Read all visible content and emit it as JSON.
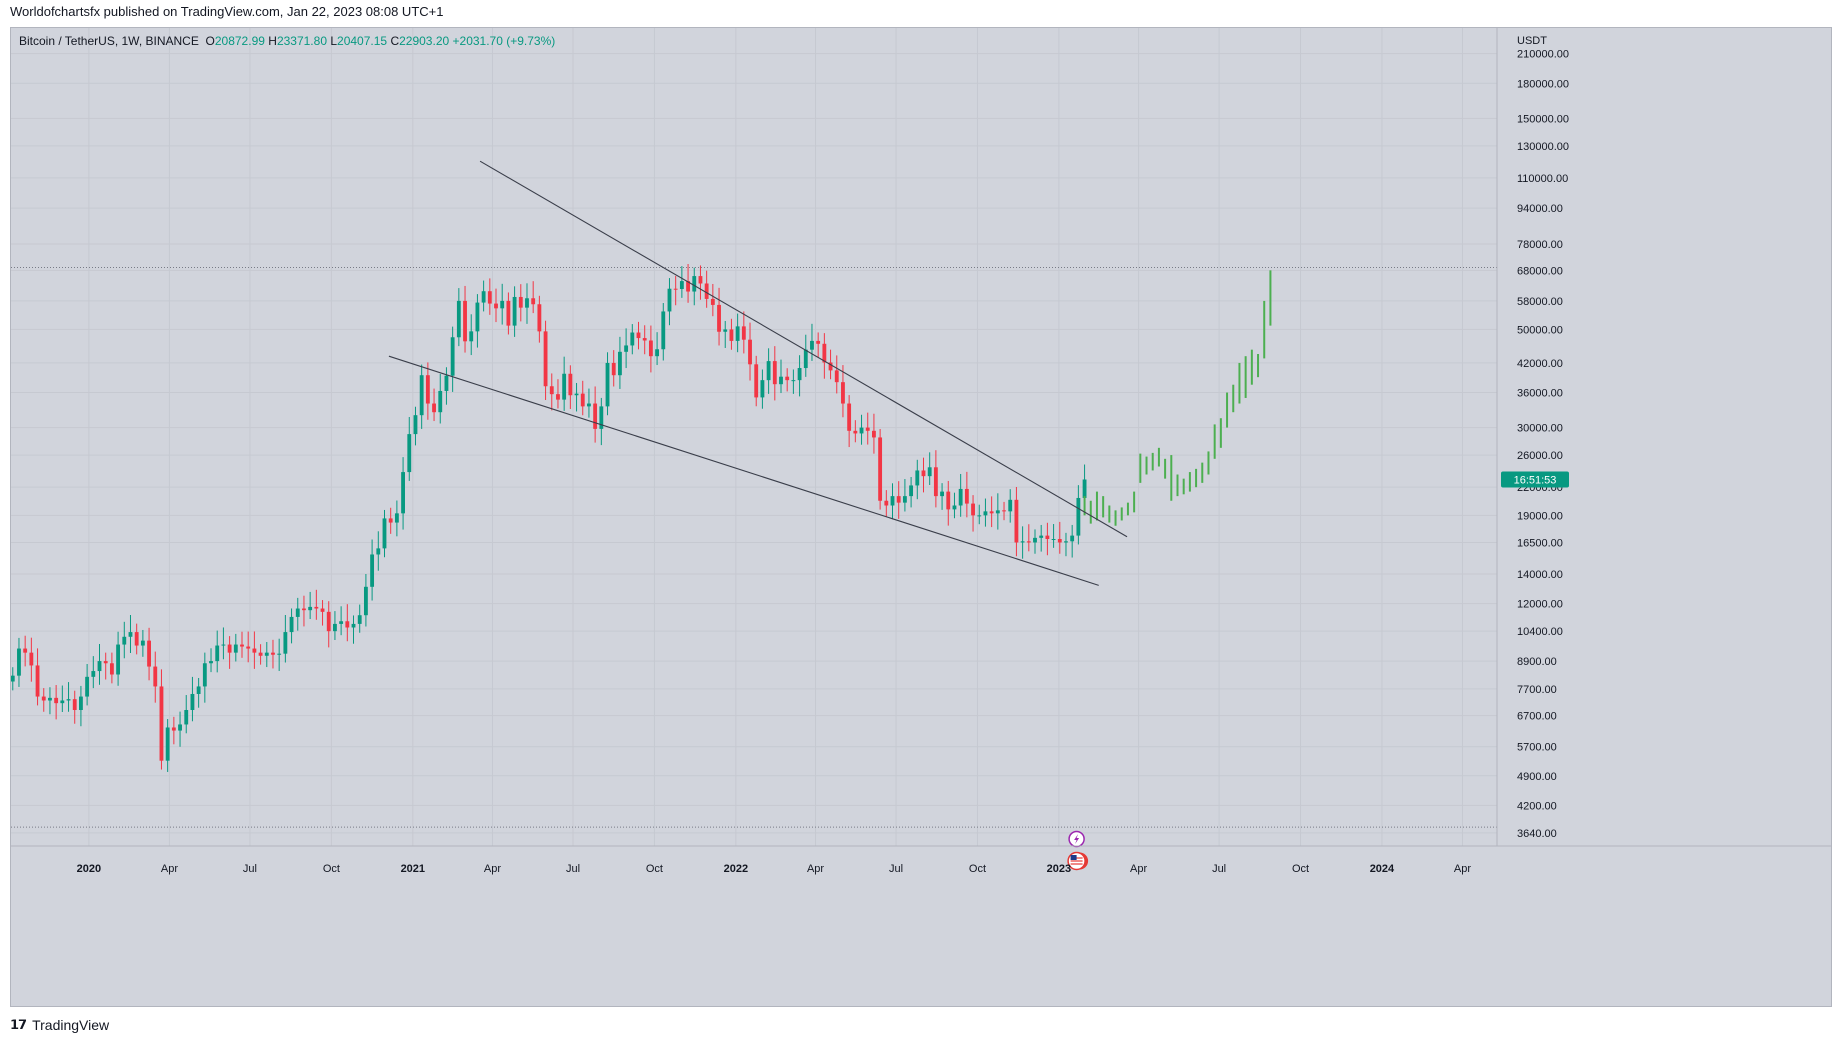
{
  "header": {
    "published": "Worldofchartsfx published on TradingView.com, Jan 22, 2023 08:08 UTC+1"
  },
  "legend": {
    "symbol": "Bitcoin / TetherUS, 1W, BINANCE",
    "open_label": "O",
    "open": "20872.99",
    "high_label": "H",
    "high": "23371.80",
    "low_label": "L",
    "low": "20407.15",
    "close_label": "C",
    "close": "22903.20",
    "change": "+2031.70 (+9.73%)"
  },
  "price_scale": {
    "currency": "USDT",
    "last_price_tag": "16:51:53"
  },
  "footer": {
    "brand": "TradingView"
  },
  "colors": {
    "up": "#089981",
    "down": "#f23645",
    "projection": "#4caf50",
    "background": "#d1d4dc",
    "grid": "#c6c9d1",
    "trendline": "#3a3e4a",
    "event_purple": "#9c27b0",
    "event_red": "#e53935"
  },
  "chart_data": {
    "type": "candlestick",
    "scale": "log",
    "interval": "1W",
    "ylim": [
      3400,
      240000
    ],
    "xlim": [
      "2019-10-05",
      "2024-05-10"
    ],
    "y_ticks": [
      210000,
      180000,
      150000,
      130000,
      110000,
      94000,
      78000,
      68000,
      58000,
      50000,
      42000,
      36000,
      30000,
      26000,
      22000,
      19000,
      16500,
      14000,
      12000,
      10400,
      8900,
      7700,
      6700,
      5700,
      4900,
      4200,
      3640
    ],
    "y_tick_labels": [
      "210000.00",
      "180000.00",
      "150000.00",
      "130000.00",
      "110000.00",
      "94000.00",
      "78000.00",
      "68000.00",
      "58000.00",
      "50000.00",
      "42000.00",
      "36000.00",
      "30000.00",
      "26000.00",
      "22000.00",
      "19000.00",
      "16500.00",
      "14000.00",
      "12000.00",
      "10400.00",
      "8900.00",
      "7700.00",
      "6700.00",
      "5700.00",
      "4900.00",
      "4200.00",
      "3640.00"
    ],
    "x_ticks": [
      {
        "date": "2020-01-01",
        "label": "2020",
        "bold": true
      },
      {
        "date": "2020-04-01",
        "label": "Apr"
      },
      {
        "date": "2020-07-01",
        "label": "Jul"
      },
      {
        "date": "2020-10-01",
        "label": "Oct"
      },
      {
        "date": "2021-01-01",
        "label": "2021",
        "bold": true
      },
      {
        "date": "2021-04-01",
        "label": "Apr"
      },
      {
        "date": "2021-07-01",
        "label": "Jul"
      },
      {
        "date": "2021-10-01",
        "label": "Oct"
      },
      {
        "date": "2022-01-01",
        "label": "2022",
        "bold": true
      },
      {
        "date": "2022-04-01",
        "label": "Apr"
      },
      {
        "date": "2022-07-01",
        "label": "Jul"
      },
      {
        "date": "2022-10-01",
        "label": "Oct"
      },
      {
        "date": "2023-01-01",
        "label": "2023",
        "bold": true
      },
      {
        "date": "2023-04-01",
        "label": "Apr"
      },
      {
        "date": "2023-07-01",
        "label": "Jul"
      },
      {
        "date": "2023-10-01",
        "label": "Oct"
      },
      {
        "date": "2024-01-01",
        "label": "2024",
        "bold": true
      },
      {
        "date": "2024-04-01",
        "label": "Apr"
      }
    ],
    "candle_start": "2019-10-07",
    "closes": [
      8250,
      9500,
      9300,
      8700,
      7400,
      7250,
      7350,
      7150,
      7250,
      7300,
      6900,
      7400,
      8200,
      8450,
      8900,
      8800,
      8300,
      9700,
      10100,
      10350,
      9650,
      9900,
      8650,
      7800,
      5300,
      6300,
      6200,
      6400,
      6900,
      7500,
      7800,
      8800,
      8900,
      9650,
      9700,
      9300,
      9700,
      9600,
      9500,
      9300,
      9150,
      9300,
      9200,
      9250,
      10350,
      11200,
      11700,
      11600,
      11800,
      11700,
      11500,
      10400,
      10800,
      10950,
      10600,
      10800,
      11300,
      13100,
      15500,
      16000,
      18700,
      18300,
      19200,
      23800,
      29000,
      32000,
      39400,
      34000,
      32500,
      36300,
      39300,
      48000,
      58000,
      47000,
      49500,
      57500,
      61000,
      57200,
      55800,
      58000,
      51000,
      59200,
      56000,
      58800,
      57000,
      49500,
      37200,
      35700,
      34700,
      39700,
      35500,
      35800,
      33500,
      34000,
      29800,
      33500,
      42000,
      39400,
      44500,
      46000,
      49200,
      47800,
      47200,
      43500,
      45100,
      54900,
      61800,
      61700,
      64300,
      60900,
      66000,
      63500,
      58600,
      56800,
      49400,
      50000,
      47100,
      50800,
      47400,
      41700,
      35100,
      38400,
      42400,
      37600,
      39100,
      38400,
      38400,
      40900,
      45000,
      47100,
      46400,
      42100,
      40400,
      38000,
      34000,
      29500,
      29100,
      30000,
      29500,
      28500,
      20500,
      20000,
      21000,
      20300,
      21000,
      22200,
      24000,
      23300,
      24400,
      21000,
      21500,
      19600,
      20000,
      21800,
      20200,
      19000,
      19000,
      19400,
      19200,
      19500,
      19400,
      20600,
      16500,
      16600,
      16500,
      16900,
      17100,
      16800,
      16800,
      16500,
      16600,
      17100,
      20800,
      22900
    ],
    "projection": [
      {
        "date": "2023-01-30",
        "y": [
          19000,
          21000
        ]
      },
      {
        "date": "2023-02-06",
        "y": [
          18200,
          20500
        ]
      },
      {
        "date": "2023-02-13",
        "y": [
          18500,
          21500
        ]
      },
      {
        "date": "2023-02-20",
        "y": [
          18800,
          21000
        ]
      },
      {
        "date": "2023-02-27",
        "y": [
          18300,
          20000
        ]
      },
      {
        "date": "2023-03-06",
        "y": [
          18000,
          19500
        ]
      },
      {
        "date": "2023-03-13",
        "y": [
          18500,
          19800
        ]
      },
      {
        "date": "2023-03-20",
        "y": [
          19000,
          20300
        ]
      },
      {
        "date": "2023-03-27",
        "y": [
          19300,
          21500
        ]
      },
      {
        "date": "2023-04-03",
        "y": [
          22500,
          26200
        ]
      },
      {
        "date": "2023-04-10",
        "y": [
          23500,
          25800
        ]
      },
      {
        "date": "2023-04-17",
        "y": [
          24000,
          26300
        ]
      },
      {
        "date": "2023-04-24",
        "y": [
          24500,
          27000
        ]
      },
      {
        "date": "2023-05-01",
        "y": [
          23000,
          25500
        ]
      },
      {
        "date": "2023-05-08",
        "y": [
          20500,
          26000
        ]
      },
      {
        "date": "2023-05-15",
        "y": [
          21000,
          23500
        ]
      },
      {
        "date": "2023-05-22",
        "y": [
          21200,
          23000
        ]
      },
      {
        "date": "2023-05-29",
        "y": [
          21500,
          23800
        ]
      },
      {
        "date": "2023-06-05",
        "y": [
          22000,
          24200
        ]
      },
      {
        "date": "2023-06-12",
        "y": [
          22500,
          25000
        ]
      },
      {
        "date": "2023-06-19",
        "y": [
          23500,
          26500
        ]
      },
      {
        "date": "2023-06-26",
        "y": [
          25500,
          30500
        ]
      },
      {
        "date": "2023-07-03",
        "y": [
          27000,
          31500
        ]
      },
      {
        "date": "2023-07-10",
        "y": [
          30000,
          36000
        ]
      },
      {
        "date": "2023-07-17",
        "y": [
          32500,
          37500
        ]
      },
      {
        "date": "2023-07-24",
        "y": [
          34000,
          42000
        ]
      },
      {
        "date": "2023-07-31",
        "y": [
          35000,
          43500
        ]
      },
      {
        "date": "2023-08-07",
        "y": [
          37500,
          45000
        ]
      },
      {
        "date": "2023-08-14",
        "y": [
          39000,
          44000
        ]
      },
      {
        "date": "2023-08-21",
        "y": [
          43000,
          58000
        ]
      },
      {
        "date": "2023-08-28",
        "y": [
          51000,
          68000
        ]
      }
    ],
    "trendlines": [
      {
        "from": {
          "date": "2021-03-18",
          "price": 120000
        },
        "to": {
          "date": "2023-03-19",
          "price": 17000
        }
      },
      {
        "from": {
          "date": "2020-12-05",
          "price": 43500
        },
        "to": {
          "date": "2023-02-15",
          "price": 13200
        }
      }
    ],
    "horizontal_levels": [
      69000,
      3750
    ],
    "events": [
      {
        "date": "2023-01-21",
        "type": "lightning-icon"
      },
      {
        "date": "2023-01-21",
        "type": "us-flag-icon"
      }
    ]
  }
}
